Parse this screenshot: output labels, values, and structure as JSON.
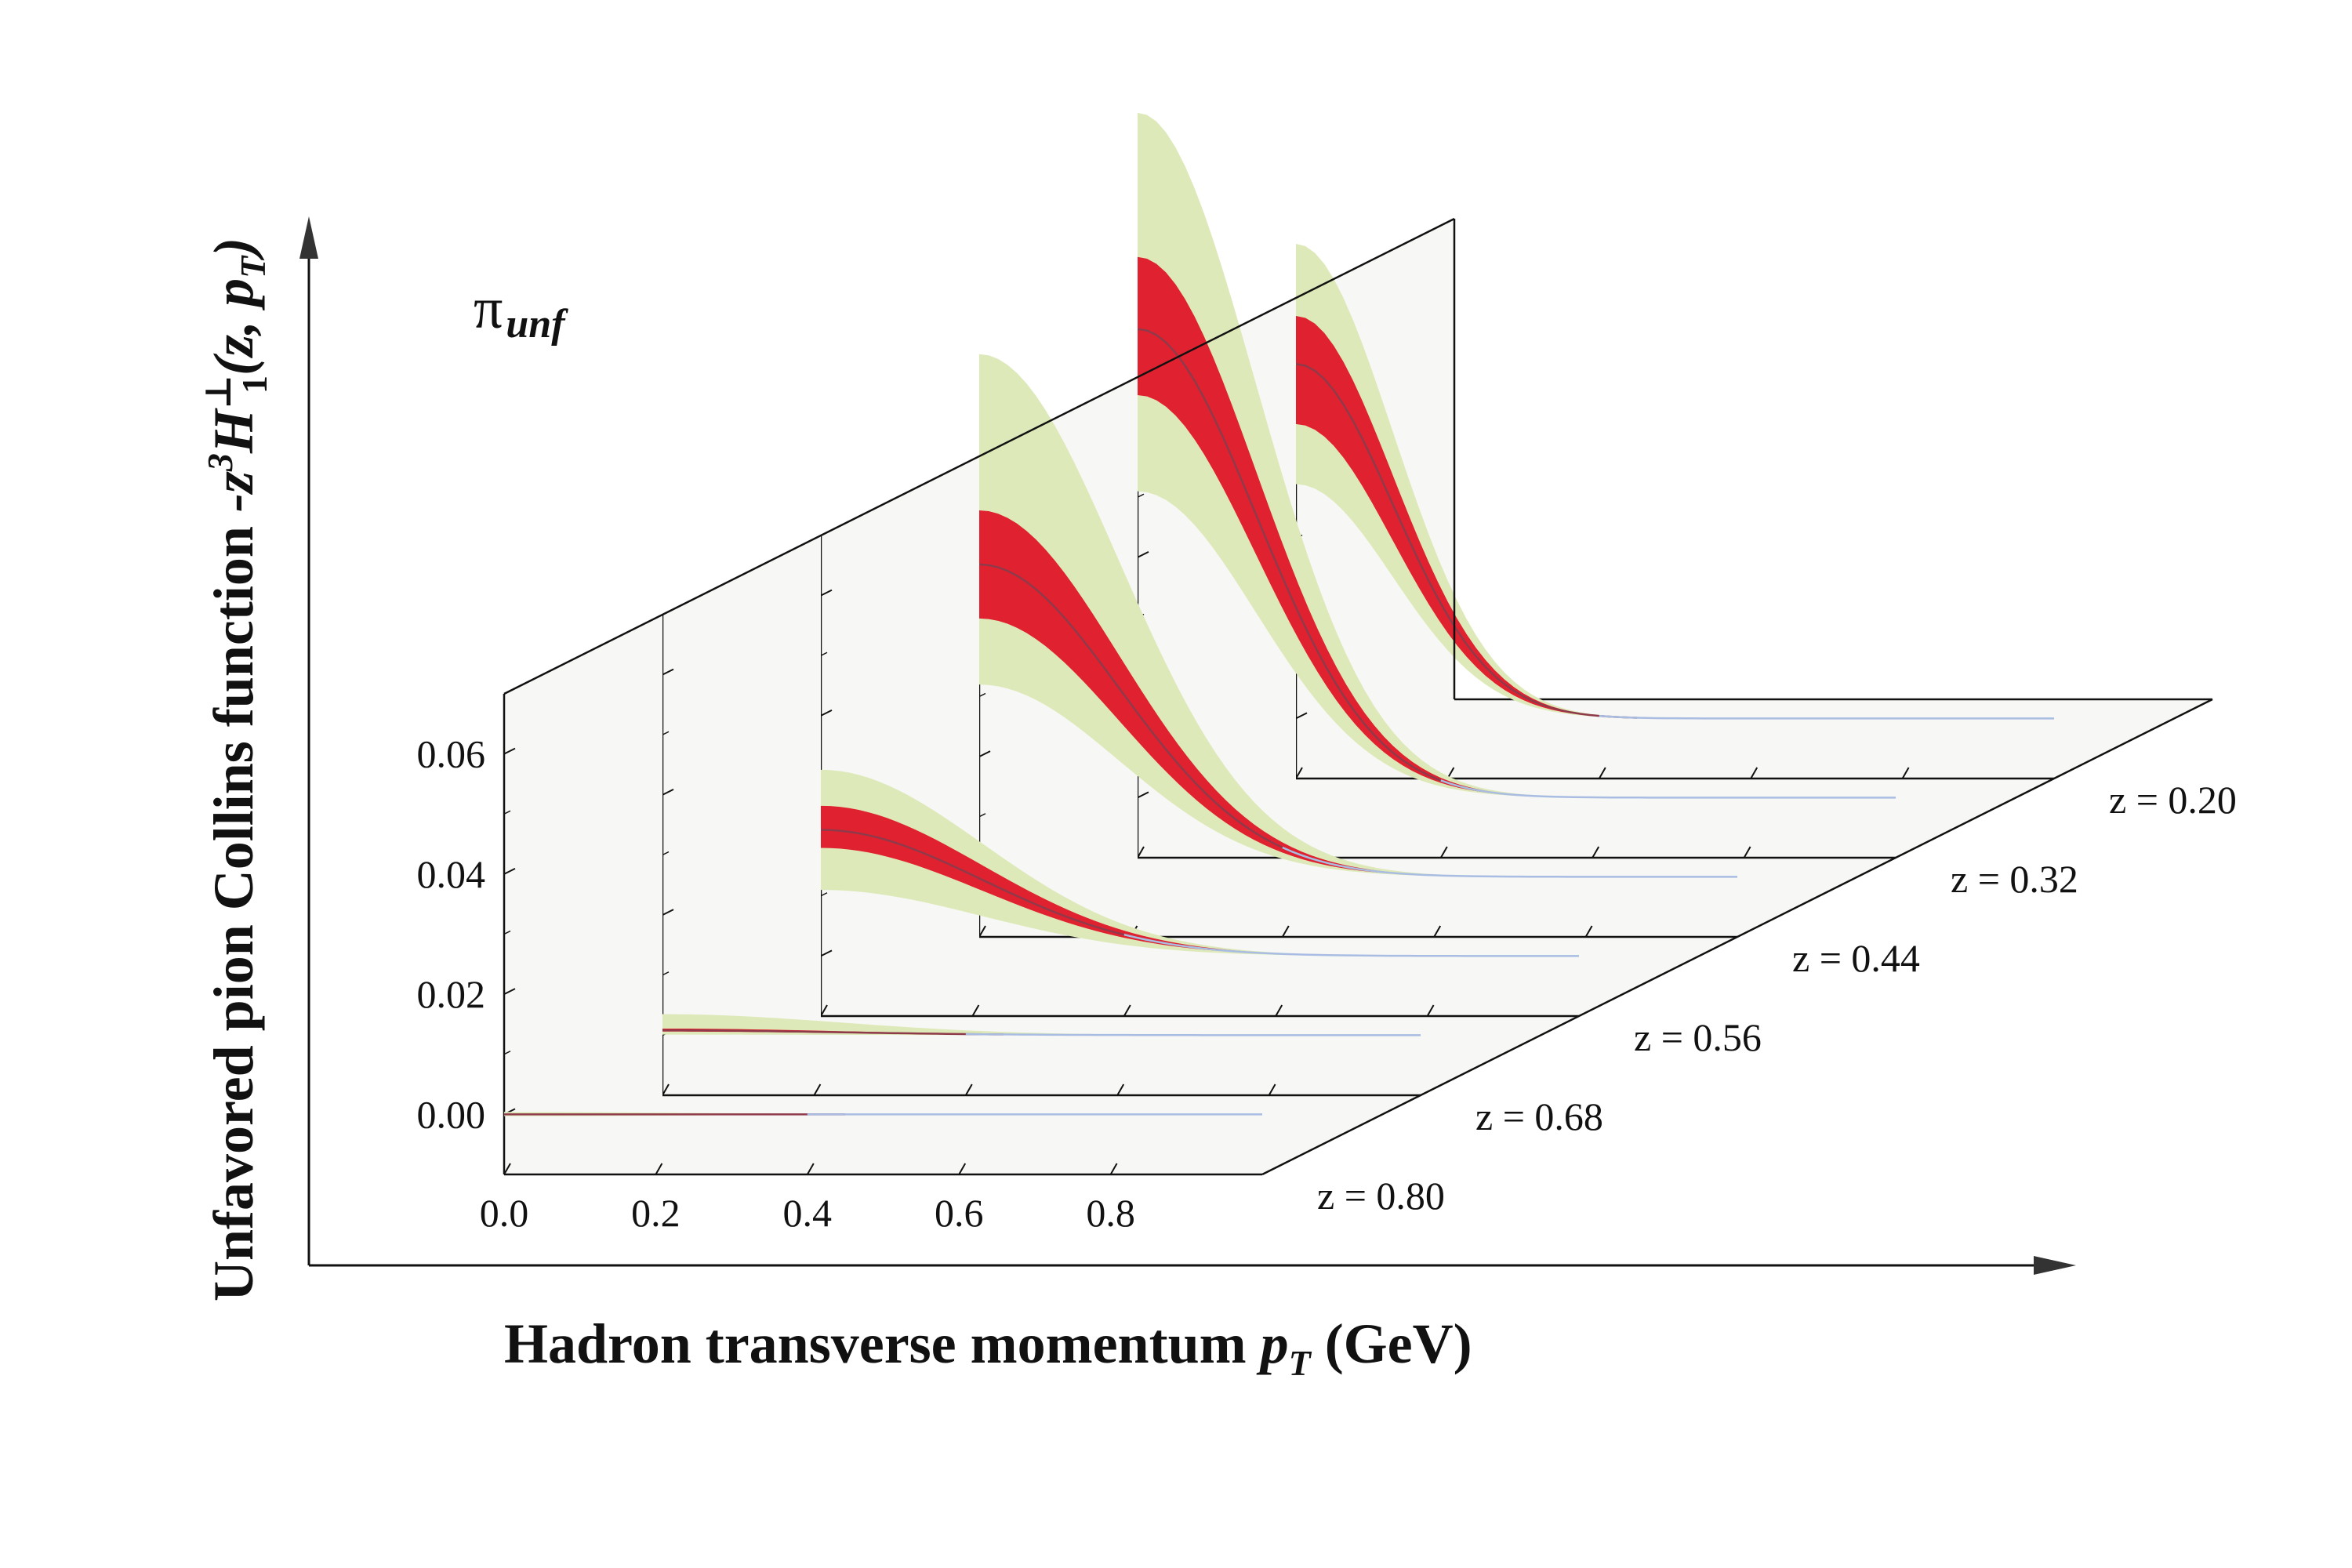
{
  "chart_data": {
    "type": "area",
    "variant": "3d-stacked-slices",
    "panel_label": {
      "main": "π",
      "sub": "unf"
    },
    "xlabel": {
      "text": "Hadron transverse momentum ",
      "var": "p",
      "var_sub": "T",
      "unit": " (GeV)"
    },
    "ylabel": {
      "text": "Unfavored pion Collins function  ",
      "prefix": "-z",
      "prefix_sup": "3",
      "func": "H",
      "func_sup": "⊥",
      "func_sub": "1",
      "args": "(z, p",
      "args_sub": "T",
      "close": ")"
    },
    "x_ticks": [
      "0.0",
      "0.2",
      "0.4",
      "0.6",
      "0.8"
    ],
    "x_tick_values": [
      0.0,
      0.2,
      0.4,
      0.6,
      0.8
    ],
    "y_ticks": [
      "0.00",
      "0.02",
      "0.04",
      "0.06"
    ],
    "y_tick_values": [
      0.0,
      0.02,
      0.04,
      0.06
    ],
    "xlim": [
      0.0,
      1.0
    ],
    "ylim": [
      -0.01,
      0.07
    ],
    "colors": {
      "inner_band": "#e0212f",
      "outer_band": "#dde9b8",
      "central_line": "#8f3a4a",
      "tail_line": "#a9bde3",
      "wall": "#f7f7f5",
      "floor": "#f7f7f5"
    },
    "series": [
      {
        "name": "z = 0.80",
        "z": 0.8,
        "peak": 0.0,
        "inner": [
          -0.0001,
          0.0001
        ],
        "outer": [
          -0.0003,
          0.0004
        ],
        "width": 0.35
      },
      {
        "name": "z = 0.68",
        "z": 0.68,
        "peak": 0.0008,
        "inner": [
          0.0006,
          0.0011
        ],
        "outer": [
          0.0001,
          0.0035
        ],
        "width": 0.33
      },
      {
        "name": "z = 0.56",
        "z": 0.56,
        "peak": 0.021,
        "inner": [
          0.018,
          0.025
        ],
        "outer": [
          0.011,
          0.031
        ],
        "width": 0.3
      },
      {
        "name": "z = 0.44",
        "z": 0.44,
        "peak": 0.052,
        "inner": [
          0.043,
          0.061
        ],
        "outer": [
          0.032,
          0.087
        ],
        "width": 0.26
      },
      {
        "name": "z = 0.32",
        "z": 0.32,
        "peak": 0.078,
        "inner": [
          0.067,
          0.09
        ],
        "outer": [
          0.051,
          0.114
        ],
        "width": 0.22
      },
      {
        "name": "z = 0.20",
        "z": 0.2,
        "peak": 0.059,
        "inner": [
          0.049,
          0.067
        ],
        "outer": [
          0.039,
          0.079
        ],
        "width": 0.18
      }
    ]
  }
}
